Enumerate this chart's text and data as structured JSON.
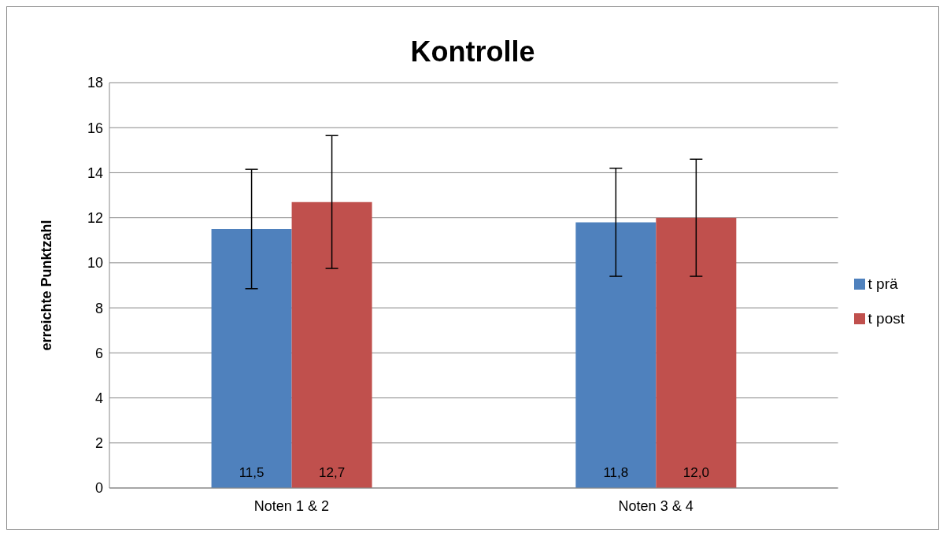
{
  "chart_data": {
    "type": "bar",
    "title": "Kontrolle",
    "ylabel": "erreichte Punktzahl",
    "categories": [
      "Noten 1 & 2",
      "Noten 3 & 4"
    ],
    "series": [
      {
        "name": "t prä",
        "color": "#4f81bd",
        "values": [
          11.5,
          11.8
        ],
        "errors": [
          2.65,
          2.4
        ],
        "value_labels": [
          "11,5",
          "11,8"
        ]
      },
      {
        "name": "t post",
        "color": "#c0504d",
        "values": [
          12.7,
          12.0
        ],
        "errors": [
          2.95,
          2.6
        ],
        "value_labels": [
          "12,7",
          "12,0"
        ]
      }
    ],
    "ylim": [
      0,
      18
    ],
    "yticks": [
      0,
      2,
      4,
      6,
      8,
      10,
      12,
      14,
      16,
      18
    ],
    "grid": "y",
    "legend": "right"
  }
}
